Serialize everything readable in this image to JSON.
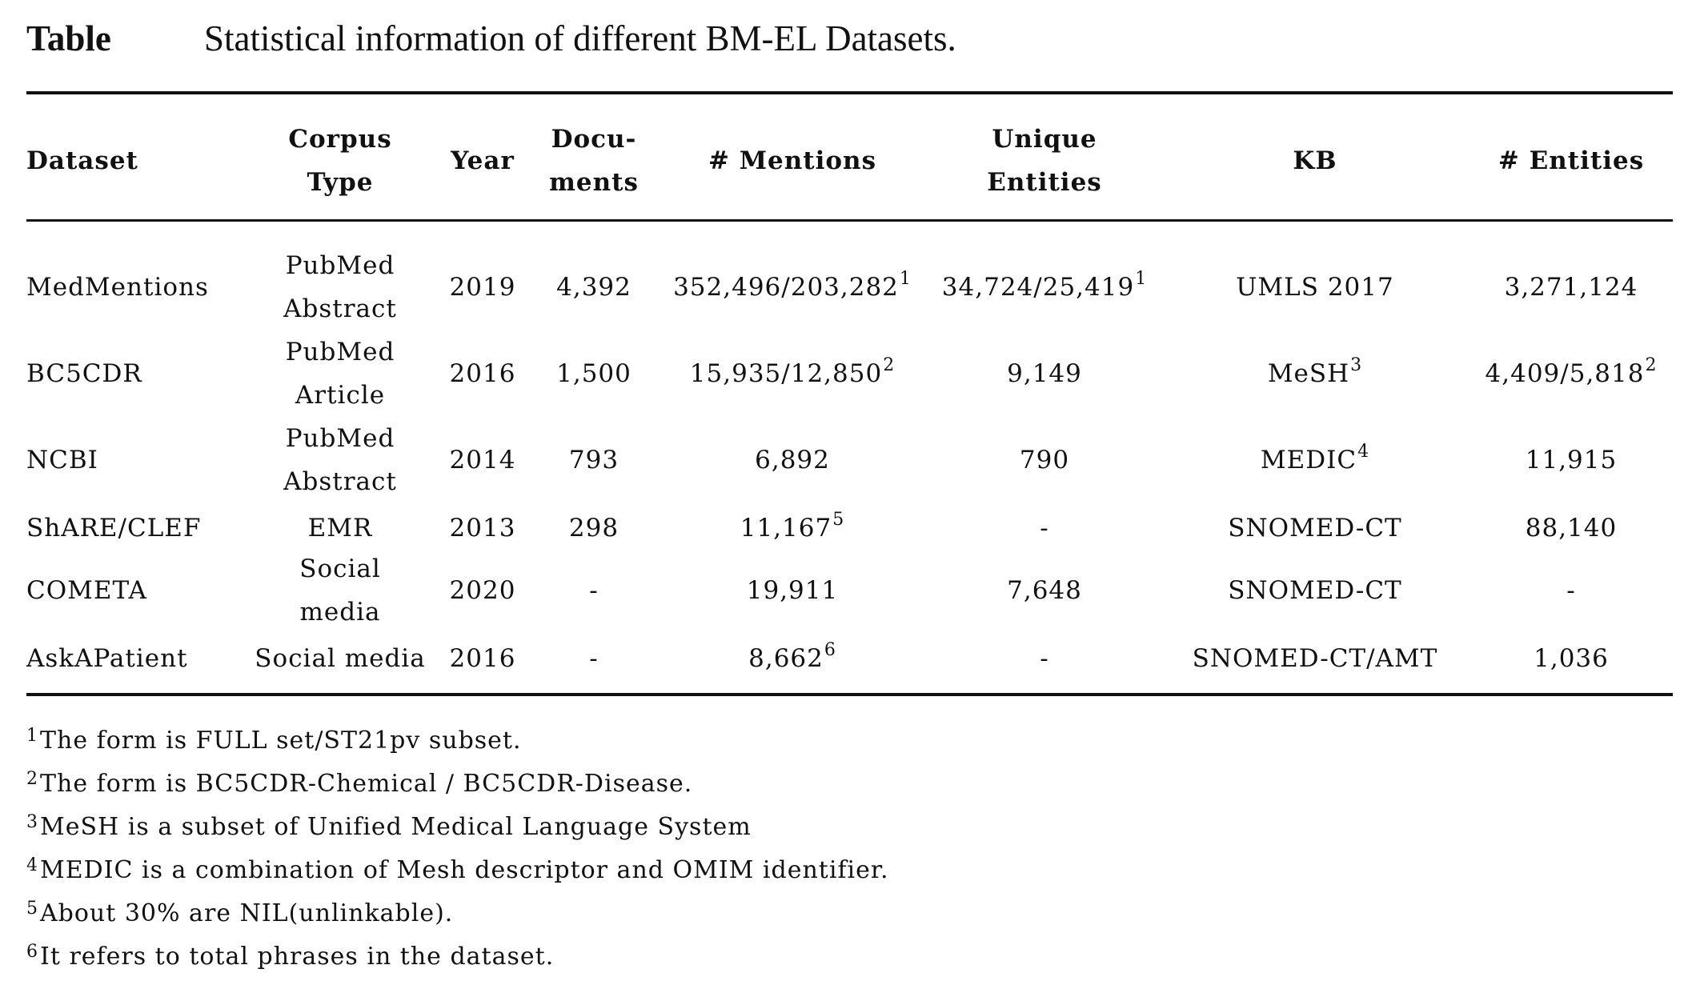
{
  "caption": {
    "label": "Table",
    "text": "Statistical information of different BM-EL Datasets."
  },
  "headers": {
    "dataset": "Dataset",
    "corpus_type": [
      "Corpus",
      "Type"
    ],
    "year": "Year",
    "documents": [
      "Docu-",
      "ments"
    ],
    "mentions": "# Mentions",
    "unique_entities": [
      "Unique",
      "Entities"
    ],
    "kb": "KB",
    "entities": "# Entities"
  },
  "rows": [
    {
      "dataset": "MedMentions",
      "corpus_type": [
        "PubMed",
        "Abstract"
      ],
      "year": "2019",
      "documents": "4,392",
      "mentions": "352,496/203,282",
      "mentions_note": "1",
      "unique_entities": "34,724/25,419",
      "unique_entities_note": "1",
      "kb": "UMLS 2017",
      "kb_note": "",
      "entities": "3,271,124",
      "entities_note": ""
    },
    {
      "dataset": "BC5CDR",
      "corpus_type": [
        "PubMed",
        "Article"
      ],
      "year": "2016",
      "documents": "1,500",
      "mentions": "15,935/12,850",
      "mentions_note": "2",
      "unique_entities": "9,149",
      "unique_entities_note": "",
      "kb": "MeSH",
      "kb_note": "3",
      "entities": "4,409/5,818",
      "entities_note": "2"
    },
    {
      "dataset": "NCBI",
      "corpus_type": [
        "PubMed",
        "Abstract"
      ],
      "year": "2014",
      "documents": "793",
      "mentions": "6,892",
      "mentions_note": "",
      "unique_entities": "790",
      "unique_entities_note": "",
      "kb": "MEDIC",
      "kb_note": "4",
      "entities": "11,915",
      "entities_note": ""
    },
    {
      "dataset": "ShARE/CLEF",
      "corpus_type": [
        "EMR"
      ],
      "year": "2013",
      "documents": "298",
      "mentions": "11,167",
      "mentions_note": "5",
      "unique_entities": "-",
      "unique_entities_note": "",
      "kb": "SNOMED-CT",
      "kb_note": "",
      "entities": "88,140",
      "entities_note": ""
    },
    {
      "dataset": "COMETA",
      "corpus_type": [
        "Social",
        "media"
      ],
      "year": "2020",
      "documents": "-",
      "mentions": "19,911",
      "mentions_note": "",
      "unique_entities": "7,648",
      "unique_entities_note": "",
      "kb": "SNOMED-CT",
      "kb_note": "",
      "entities": "-",
      "entities_note": ""
    },
    {
      "dataset": "AskAPatient",
      "corpus_type": [
        "Social media"
      ],
      "year": "2016",
      "documents": "-",
      "mentions": "8,662",
      "mentions_note": "6",
      "unique_entities": "-",
      "unique_entities_note": "",
      "kb": "SNOMED-CT/AMT",
      "kb_note": "",
      "entities": "1,036",
      "entities_note": ""
    }
  ],
  "footnotes": [
    {
      "mark": "1",
      "text": "The form is FULL set/ST21pv subset."
    },
    {
      "mark": "2",
      "text": "The form is BC5CDR-Chemical / BC5CDR-Disease."
    },
    {
      "mark": "3",
      "text": "MeSH is a subset of Unified Medical Language System"
    },
    {
      "mark": "4",
      "text": "MEDIC is a combination of Mesh descriptor and OMIM identifier."
    },
    {
      "mark": "5",
      "text": "About 30% are NIL(unlinkable)."
    },
    {
      "mark": "6",
      "text": "It refers to total phrases in the dataset."
    }
  ]
}
